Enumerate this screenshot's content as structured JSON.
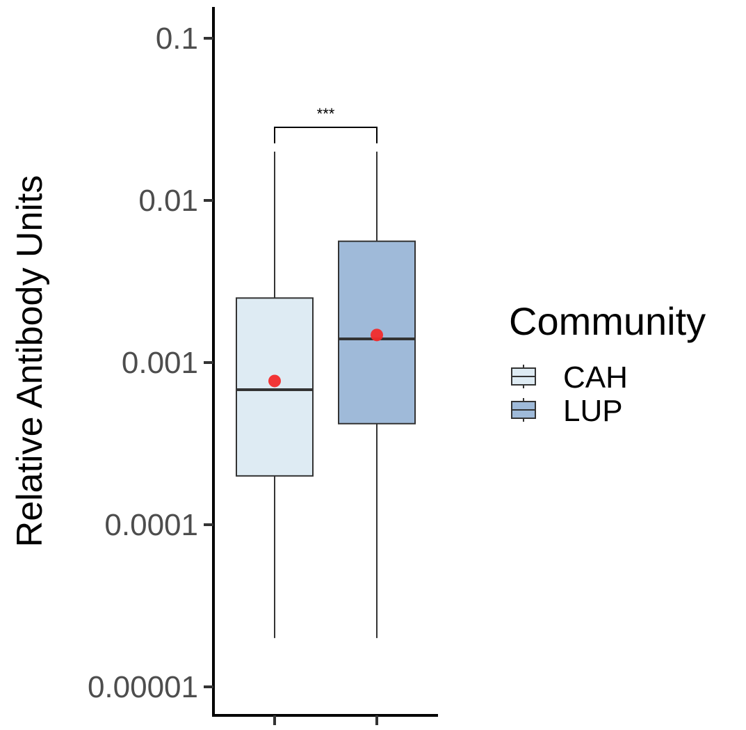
{
  "chart_data": {
    "type": "box",
    "scale": "log10",
    "ylabel": "Relative Antibody Units",
    "xlabel": "",
    "ylim": [
      1e-05,
      0.1
    ],
    "yticks": [
      1e-05,
      0.0001,
      0.001,
      0.01,
      0.1
    ],
    "ytick_labels": [
      "0.00001",
      "0.0001",
      "0.001",
      "0.01",
      "0.1"
    ],
    "categories": [
      "CAH",
      "LUP"
    ],
    "grid": false,
    "legend": {
      "title": "Community",
      "placement": "right",
      "entries": [
        {
          "label": "CAH",
          "color": "#deebf3"
        },
        {
          "label": "LUP",
          "color": "#9fbad9"
        }
      ]
    },
    "boxes": [
      {
        "name": "CAH",
        "whisker_low": 2e-05,
        "q1": 0.0002,
        "median": 0.00068,
        "q3": 0.0025,
        "whisker_high": 0.02,
        "mean": 0.00077,
        "fill": "#deebf3"
      },
      {
        "name": "LUP",
        "whisker_low": 2e-05,
        "q1": 0.00042,
        "median": 0.0014,
        "q3": 0.0056,
        "whisker_high": 0.02,
        "mean": 0.00148,
        "fill": "#9fbad9"
      }
    ],
    "mean_marker_color": "#f22b2b",
    "significance": {
      "between": [
        "CAH",
        "LUP"
      ],
      "label": "***"
    }
  }
}
